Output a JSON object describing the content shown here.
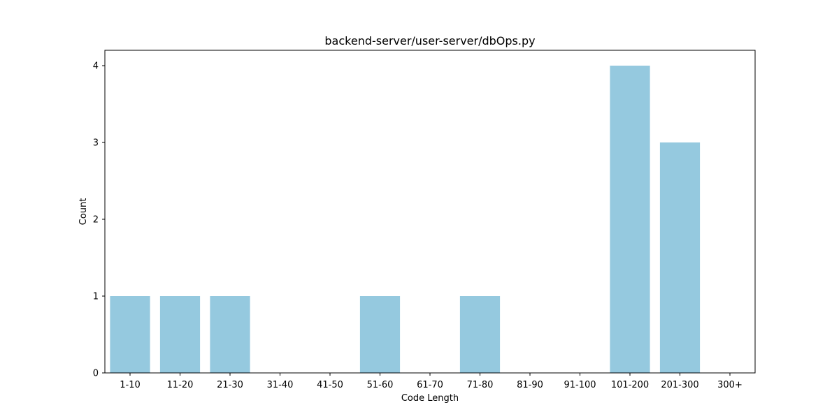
{
  "chart_data": {
    "type": "bar",
    "title": "backend-server/user-server/dbOps.py",
    "xlabel": "Code Length",
    "ylabel": "Count",
    "categories": [
      "1-10",
      "11-20",
      "21-30",
      "31-40",
      "41-50",
      "51-60",
      "61-70",
      "71-80",
      "81-90",
      "91-100",
      "101-200",
      "201-300",
      "300+"
    ],
    "values": [
      1,
      1,
      1,
      0,
      0,
      1,
      0,
      1,
      0,
      0,
      4,
      3,
      0
    ],
    "ylim": [
      0,
      4.2
    ],
    "yticks": [
      0,
      1,
      2,
      3,
      4
    ],
    "bar_color": "#95c9df",
    "grid": false,
    "legend": "none"
  }
}
